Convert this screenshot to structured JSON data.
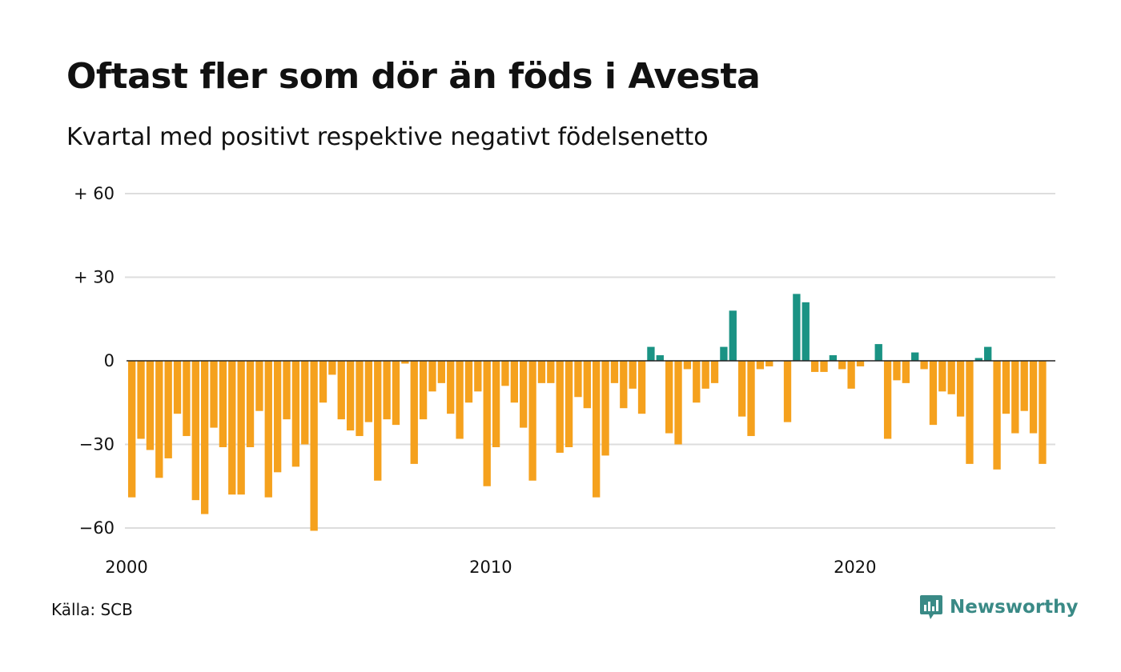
{
  "title": "Oftast fler som dör än föds i Avesta",
  "subtitle": "Kvartal med positivt respektive negativt födelsenetto",
  "source": "Källa: SCB",
  "brand": {
    "name": "Newsworthy",
    "color": "#3a8a86",
    "icon": "newsworthy-logo-icon"
  },
  "colors": {
    "positive": "#1a9384",
    "negative": "#f5a11d",
    "grid": "#dddddd",
    "zero": "#222222"
  },
  "chart_data": {
    "type": "bar",
    "title": "Oftast fler som dör än föds i Avesta",
    "subtitle": "Kvartal med positivt respektive negativt födelsenetto",
    "xlabel": "",
    "ylabel": "",
    "ylim": [
      -67,
      62
    ],
    "yticks": [
      {
        "value": 60,
        "label": "+ 60"
      },
      {
        "value": 30,
        "label": "+ 30"
      },
      {
        "value": 0,
        "label": "0"
      },
      {
        "value": -30,
        "label": "−30"
      },
      {
        "value": -60,
        "label": "−60"
      }
    ],
    "xticks": [
      {
        "value": 2000,
        "label": "2000"
      },
      {
        "value": 2010,
        "label": "2010"
      },
      {
        "value": 2020,
        "label": "2020"
      }
    ],
    "xlim": [
      2000,
      2025.5
    ],
    "grid": true,
    "legend": "none",
    "quarters_start": 2000,
    "values": [
      -49,
      -28,
      -32,
      -42,
      -35,
      -19,
      -27,
      -50,
      -55,
      -24,
      -31,
      -48,
      -48,
      -31,
      -18,
      -49,
      -40,
      -21,
      -38,
      -30,
      -61,
      -15,
      -5,
      -21,
      -25,
      -27,
      -22,
      -43,
      -21,
      -23,
      -1,
      -37,
      -21,
      -11,
      -8,
      -19,
      -28,
      -15,
      -11,
      -45,
      -31,
      -9,
      -15,
      -24,
      -43,
      -8,
      -8,
      -33,
      -31,
      -13,
      -17,
      -49,
      -34,
      -8,
      -17,
      -10,
      -19,
      5,
      2,
      -26,
      -30,
      -3,
      -15,
      -10,
      -8,
      5,
      18,
      -20,
      -27,
      -3,
      -2,
      0,
      -22,
      24,
      21,
      -4,
      -4,
      2,
      -3,
      -10,
      -2,
      0,
      6,
      -28,
      -7,
      -8,
      3,
      -3,
      -23,
      -11,
      -12,
      -20,
      -37,
      1,
      5,
      -39,
      -19,
      -26,
      -18,
      -26,
      -37
    ]
  }
}
